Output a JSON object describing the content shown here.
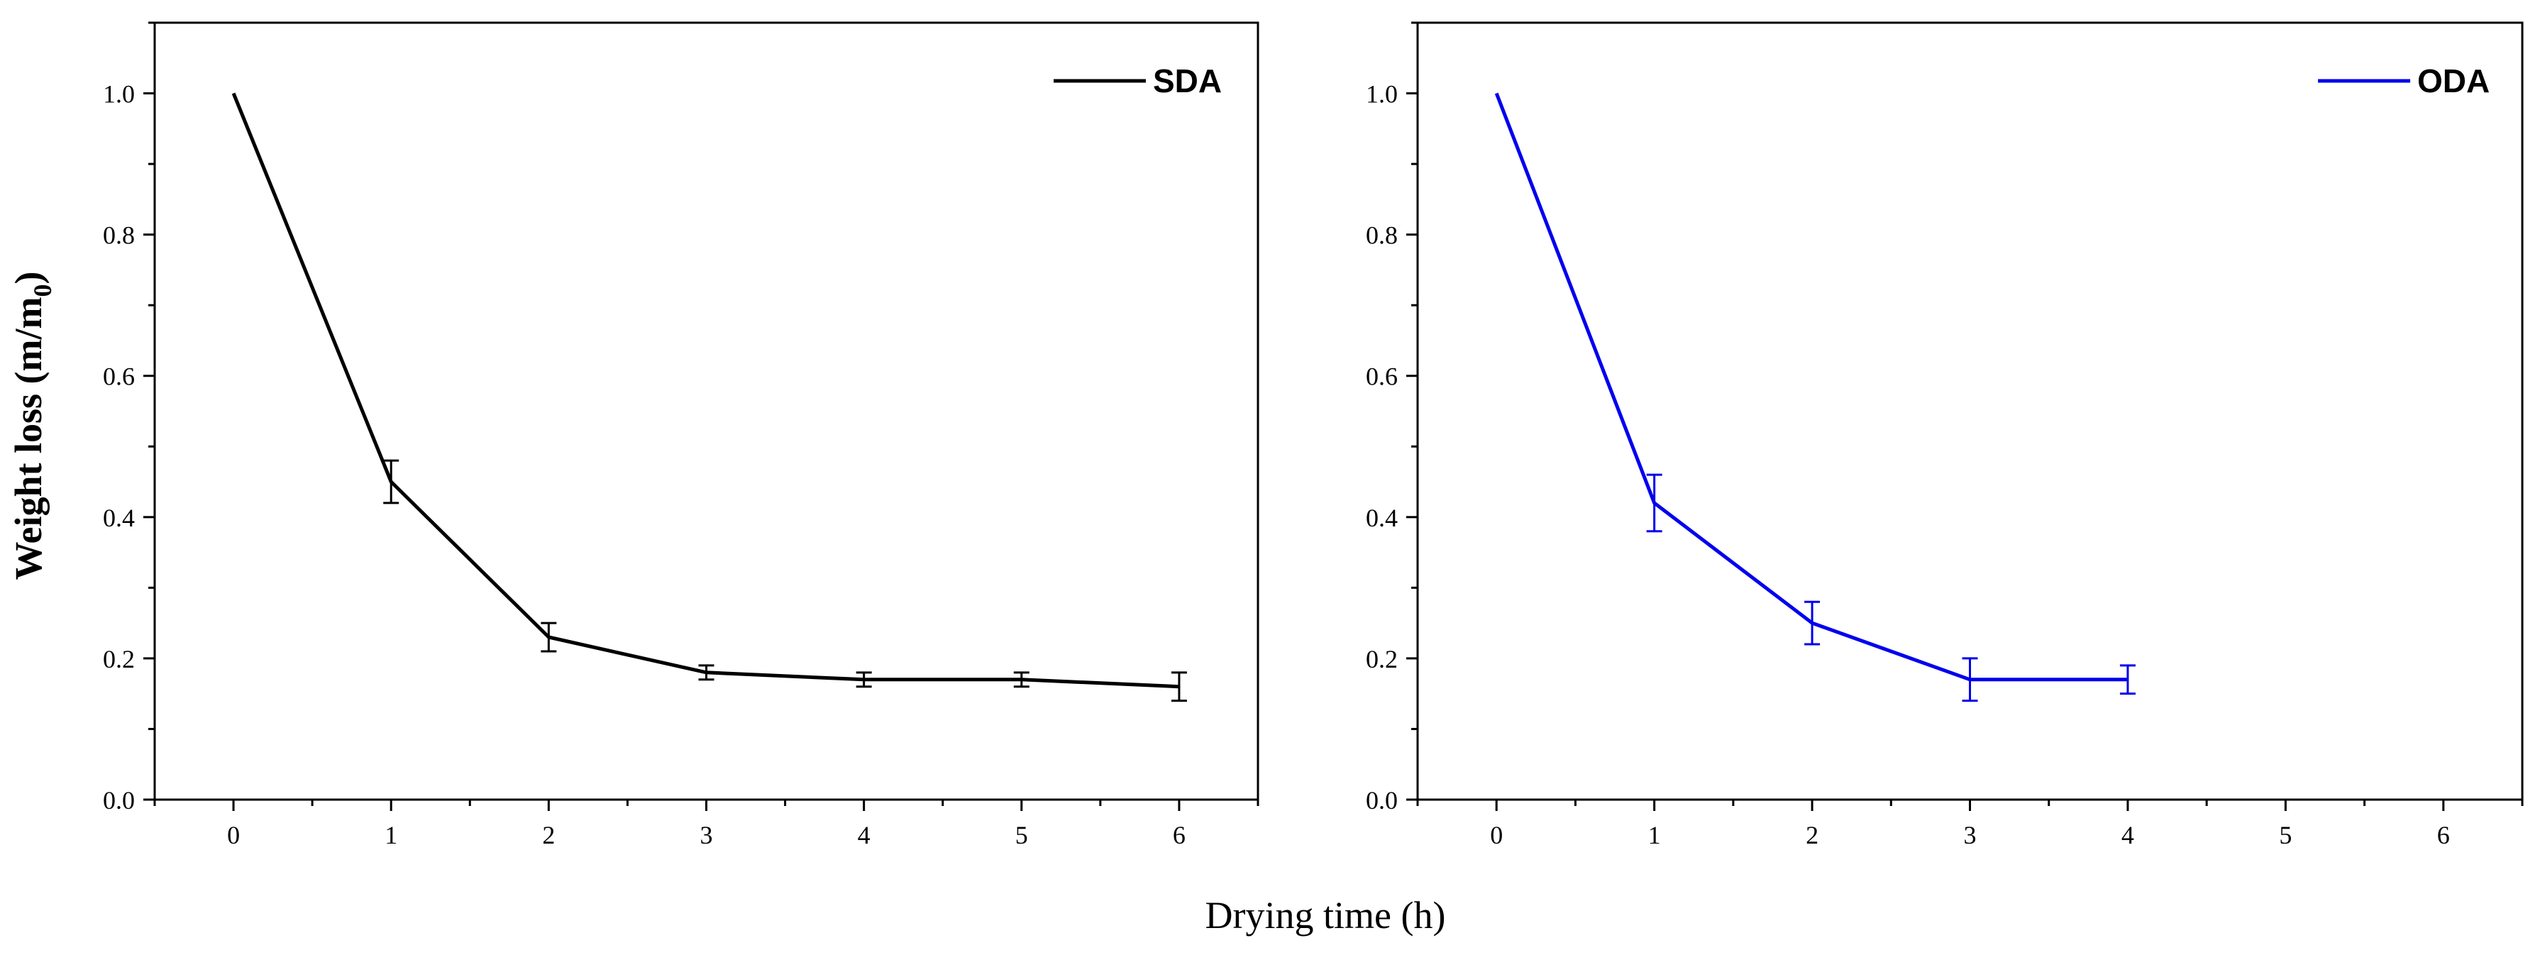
{
  "figure": {
    "shared_xlabel": "Drying time (h)",
    "ylabel_main": "Weight loss (m/m",
    "ylabel_sub": "0",
    "ylabel_close": ")"
  },
  "chart_data": [
    {
      "type": "line",
      "xlim": [
        -0.5,
        6.5
      ],
      "ylim": [
        0,
        1.1
      ],
      "xticks": [
        0,
        1,
        2,
        3,
        4,
        5,
        6
      ],
      "xtick_labels": [
        "0",
        "1",
        "2",
        "3",
        "4",
        "5",
        "6"
      ],
      "yticks": [
        0.0,
        0.2,
        0.4,
        0.6,
        0.8,
        1.0
      ],
      "ytick_labels": [
        "0.0",
        "0.2",
        "0.4",
        "0.6",
        "0.8",
        "1.0"
      ],
      "legend_position": "top-right",
      "series": [
        {
          "name": "SDA",
          "color": "#000000",
          "x": [
            0,
            1,
            2,
            3,
            4,
            5,
            6
          ],
          "y": [
            1.0,
            0.45,
            0.23,
            0.18,
            0.17,
            0.17,
            0.16
          ],
          "yerr": [
            0,
            0.03,
            0.02,
            0.01,
            0.01,
            0.01,
            0.02
          ]
        }
      ]
    },
    {
      "type": "line",
      "xlim": [
        -0.5,
        6.5
      ],
      "ylim": [
        0,
        1.1
      ],
      "xticks": [
        0,
        1,
        2,
        3,
        4,
        5,
        6
      ],
      "xtick_labels": [
        "0",
        "1",
        "2",
        "3",
        "4",
        "5",
        "6"
      ],
      "yticks": [
        0.0,
        0.2,
        0.4,
        0.6,
        0.8,
        1.0
      ],
      "ytick_labels": [
        "0.0",
        "0.2",
        "0.4",
        "0.6",
        "0.8",
        "1.0"
      ],
      "legend_position": "top-right",
      "series": [
        {
          "name": "ODA",
          "color": "#0000ee",
          "x": [
            0,
            1,
            2,
            3,
            4
          ],
          "y": [
            1.0,
            0.42,
            0.25,
            0.17,
            0.17
          ],
          "yerr": [
            0,
            0.04,
            0.03,
            0.03,
            0.02
          ]
        }
      ]
    }
  ]
}
